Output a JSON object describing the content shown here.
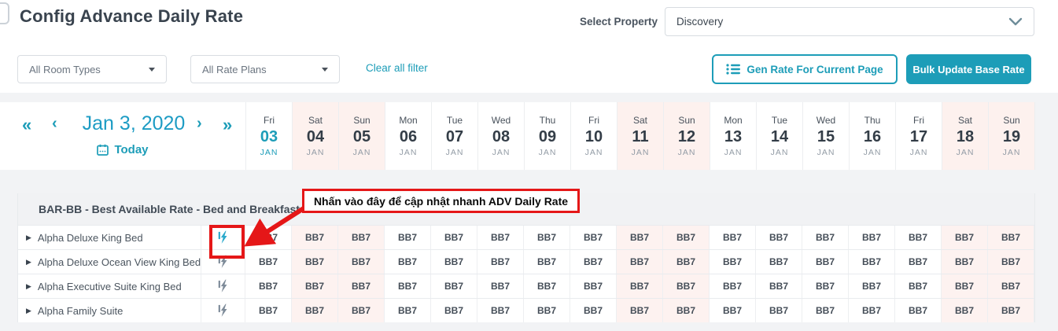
{
  "header": {
    "title": "Config Advance Daily Rate",
    "select_property_label": "Select Property",
    "property_value": "Discovery"
  },
  "filters": {
    "room_types_value": "All Room Types",
    "rate_plans_value": "All Rate Plans",
    "clear_all_label": "Clear all filter",
    "gen_rate_label": "Gen Rate For Current Page",
    "bulk_update_label": "Bulk Update Base Rate"
  },
  "date_nav": {
    "first_arrow": "«",
    "prev_arrow": "‹",
    "current_date": "Jan 3, 2020",
    "next_arrow": "›",
    "last_arrow": "»",
    "today_label": "Today"
  },
  "calendar": {
    "days": [
      {
        "dow": "Fri",
        "day": "03",
        "month": "JAN",
        "weekend": false,
        "today": true
      },
      {
        "dow": "Sat",
        "day": "04",
        "month": "JAN",
        "weekend": true,
        "today": false
      },
      {
        "dow": "Sun",
        "day": "05",
        "month": "JAN",
        "weekend": true,
        "today": false
      },
      {
        "dow": "Mon",
        "day": "06",
        "month": "JAN",
        "weekend": false,
        "today": false
      },
      {
        "dow": "Tue",
        "day": "07",
        "month": "JAN",
        "weekend": false,
        "today": false
      },
      {
        "dow": "Wed",
        "day": "08",
        "month": "JAN",
        "weekend": false,
        "today": false
      },
      {
        "dow": "Thu",
        "day": "09",
        "month": "JAN",
        "weekend": false,
        "today": false
      },
      {
        "dow": "Fri",
        "day": "10",
        "month": "JAN",
        "weekend": false,
        "today": false
      },
      {
        "dow": "Sat",
        "day": "11",
        "month": "JAN",
        "weekend": true,
        "today": false
      },
      {
        "dow": "Sun",
        "day": "12",
        "month": "JAN",
        "weekend": true,
        "today": false
      },
      {
        "dow": "Mon",
        "day": "13",
        "month": "JAN",
        "weekend": false,
        "today": false
      },
      {
        "dow": "Tue",
        "day": "14",
        "month": "JAN",
        "weekend": false,
        "today": false
      },
      {
        "dow": "Wed",
        "day": "15",
        "month": "JAN",
        "weekend": false,
        "today": false
      },
      {
        "dow": "Thu",
        "day": "16",
        "month": "JAN",
        "weekend": false,
        "today": false
      },
      {
        "dow": "Fri",
        "day": "17",
        "month": "JAN",
        "weekend": false,
        "today": false
      },
      {
        "dow": "Sat",
        "day": "18",
        "month": "JAN",
        "weekend": true,
        "today": false
      },
      {
        "dow": "Sun",
        "day": "19",
        "month": "JAN",
        "weekend": true,
        "today": false
      }
    ]
  },
  "rate_table": {
    "section_title": "BAR-BB - Best Available Rate - Bed and Breakfast",
    "rate_value": "BB7",
    "expand_glyph": "▶",
    "rows": [
      {
        "name": "Alpha Deluxe King Bed",
        "bolt_active": true
      },
      {
        "name": "Alpha Deluxe Ocean View King Bed",
        "bolt_active": false
      },
      {
        "name": "Alpha Executive Suite King Bed",
        "bolt_active": false
      },
      {
        "name": "Alpha Family Suite",
        "bolt_active": false
      }
    ]
  },
  "annotation": {
    "text": "Nhấn vào đây để cập nhật nhanh ADV Daily Rate"
  },
  "colors": {
    "accent_teal": "#1d9db8",
    "weekend_bg": "#fdf1ee",
    "annotation_red": "#e51718",
    "bolt_active": "#2aa9cc",
    "bolt_inactive": "#7e8b99"
  }
}
